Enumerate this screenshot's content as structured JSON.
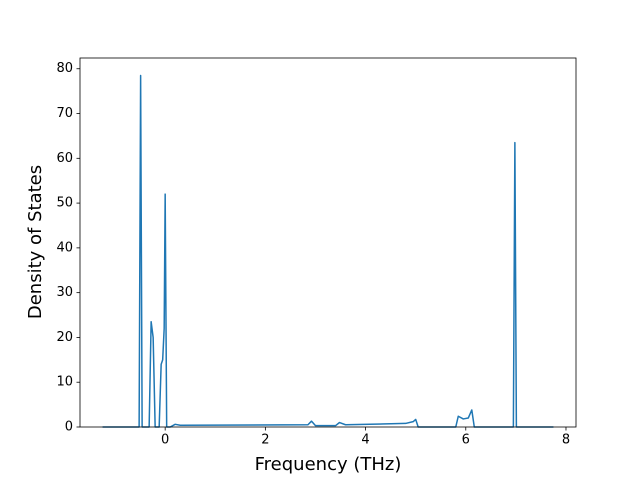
{
  "chart_data": {
    "type": "line",
    "xlabel": "Frequency (THz)",
    "ylabel": "Density of States",
    "x": [
      -1.25,
      -0.52,
      -0.49,
      -0.46,
      -0.32,
      -0.28,
      -0.24,
      -0.2,
      -0.12,
      -0.08,
      -0.05,
      -0.02,
      0.0,
      0.03,
      0.1,
      0.2,
      0.3,
      2.85,
      2.92,
      3.0,
      3.4,
      3.48,
      3.6,
      4.8,
      4.95,
      5.0,
      5.05,
      5.8,
      5.85,
      5.95,
      6.05,
      6.12,
      6.17,
      6.95,
      6.98,
      7.01,
      7.75
    ],
    "values": [
      0,
      0,
      78.5,
      0,
      0,
      23.5,
      20,
      0,
      0,
      14,
      15,
      22,
      52,
      0,
      0,
      0.6,
      0.4,
      0.5,
      1.3,
      0.3,
      0.3,
      1.0,
      0.5,
      0.8,
      1.2,
      1.7,
      0,
      0,
      2.4,
      1.8,
      2.0,
      3.8,
      0,
      0,
      63.5,
      0,
      0
    ],
    "color": "#1f77b4",
    "xlim": [
      -1.7,
      8.2
    ],
    "xticks": [
      0,
      2,
      4,
      6,
      8
    ],
    "ylim": [
      0,
      82.4
    ],
    "yticks": [
      0,
      10,
      20,
      30,
      40,
      50,
      60,
      70,
      80
    ]
  }
}
